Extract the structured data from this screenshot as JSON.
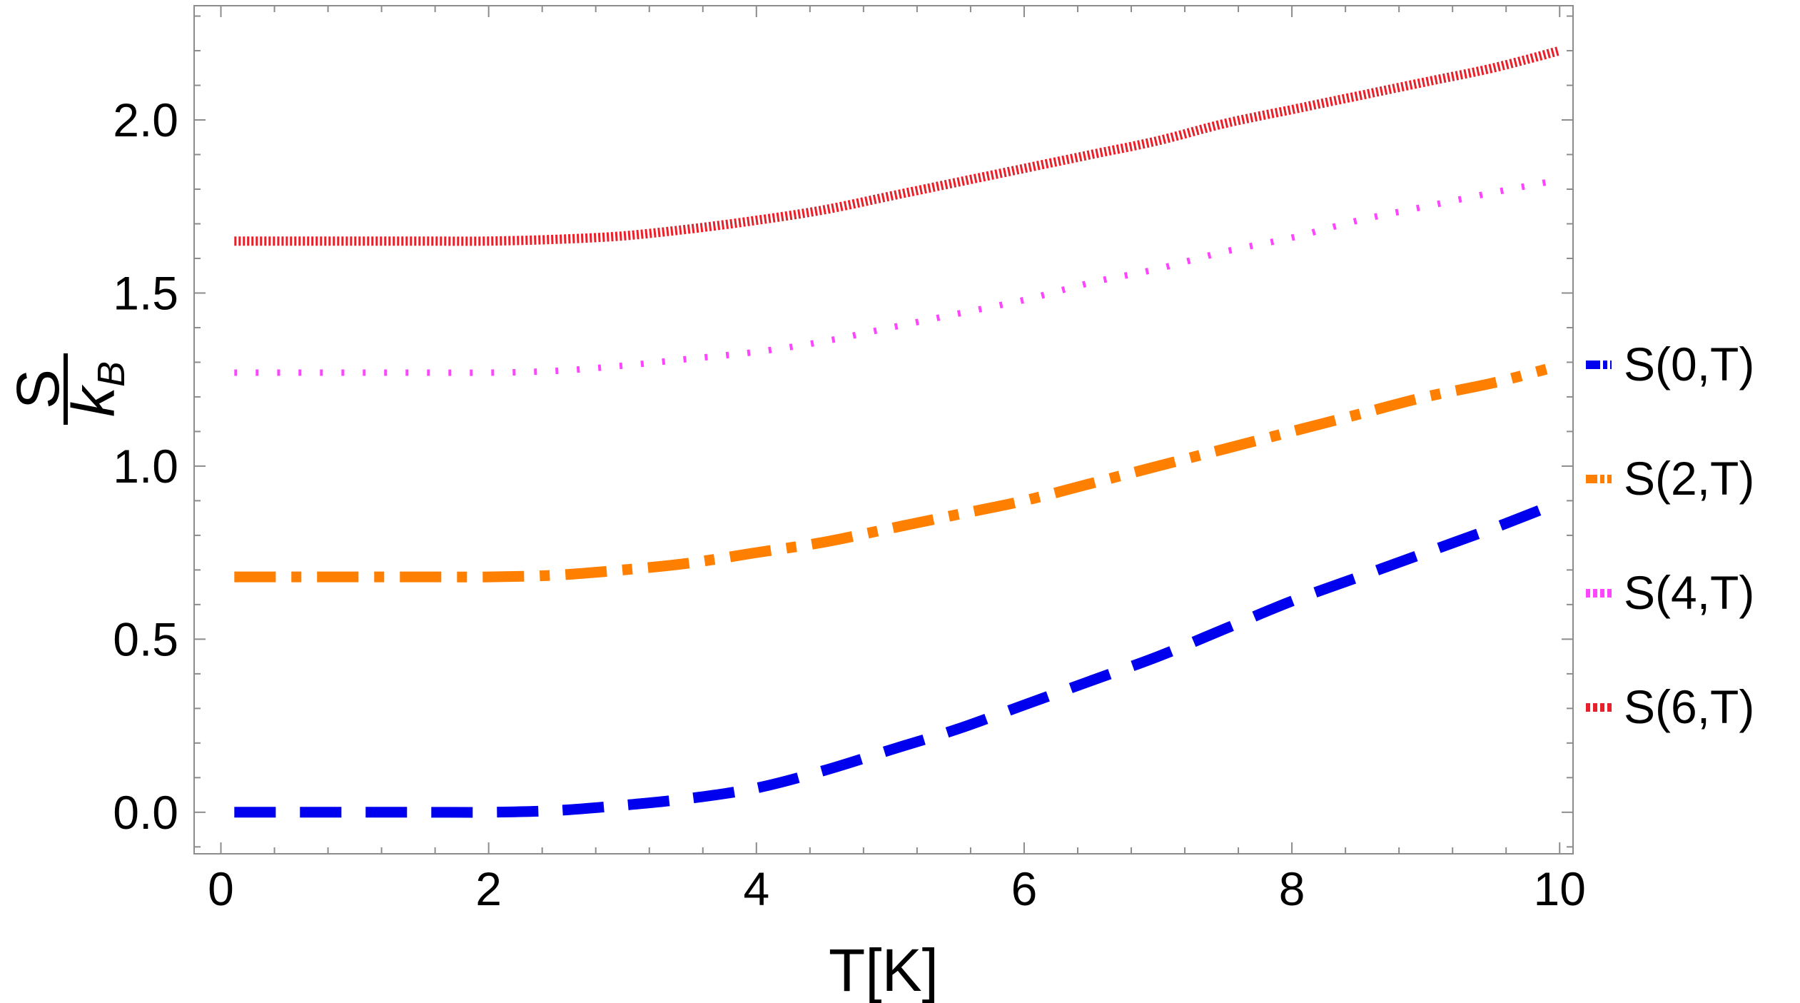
{
  "chart_data": {
    "type": "line",
    "xlabel": "T[K]",
    "ylabel_numerator": "S",
    "ylabel_denominator_main": "k",
    "ylabel_denominator_sub": "B",
    "xlim": [
      -0.2,
      10.1
    ],
    "ylim": [
      -0.12,
      2.33
    ],
    "x_ticks": [
      0,
      2,
      4,
      6,
      8,
      10
    ],
    "x_tick_labels": [
      "0",
      "2",
      "4",
      "6",
      "8",
      "10"
    ],
    "y_ticks": [
      0.0,
      0.5,
      1.0,
      1.5,
      2.0
    ],
    "y_tick_labels": [
      "0.0",
      "0.5",
      "1.0",
      "1.5",
      "2.0"
    ],
    "grid": false,
    "legend_position": "right",
    "series": [
      {
        "name": "S(0,T)",
        "color": "#0000ee",
        "style": "dashed",
        "x": [
          0.1,
          0.5,
          1.0,
          1.5,
          2.0,
          2.5,
          3.0,
          3.5,
          4.0,
          4.5,
          5.0,
          5.5,
          6.0,
          6.5,
          7.0,
          7.5,
          8.0,
          8.5,
          9.0,
          9.5,
          9.9
        ],
        "y": [
          0.0,
          0.0,
          0.0,
          0.0,
          0.0,
          0.005,
          0.02,
          0.04,
          0.07,
          0.12,
          0.18,
          0.24,
          0.31,
          0.38,
          0.45,
          0.53,
          0.61,
          0.68,
          0.75,
          0.82,
          0.88
        ]
      },
      {
        "name": "S(2,T)",
        "color": "#ff7f00",
        "style": "dash-dot",
        "x": [
          0.1,
          0.5,
          1.0,
          1.5,
          2.0,
          2.5,
          3.0,
          3.5,
          4.0,
          4.5,
          5.0,
          5.5,
          6.0,
          6.5,
          7.0,
          7.5,
          8.0,
          8.5,
          9.0,
          9.5,
          9.9
        ],
        "y": [
          0.68,
          0.68,
          0.68,
          0.68,
          0.68,
          0.685,
          0.7,
          0.72,
          0.75,
          0.78,
          0.82,
          0.86,
          0.9,
          0.95,
          1.0,
          1.05,
          1.1,
          1.15,
          1.2,
          1.24,
          1.28
        ]
      },
      {
        "name": "S(4,T)",
        "color": "#ff44ff",
        "style": "dotted",
        "x": [
          0.1,
          0.5,
          1.0,
          1.5,
          2.0,
          2.5,
          3.0,
          3.5,
          4.0,
          4.5,
          5.0,
          5.5,
          6.0,
          6.5,
          7.0,
          7.5,
          8.0,
          8.5,
          9.0,
          9.5,
          9.9
        ],
        "y": [
          1.27,
          1.27,
          1.27,
          1.27,
          1.27,
          1.275,
          1.29,
          1.31,
          1.33,
          1.36,
          1.4,
          1.44,
          1.48,
          1.53,
          1.57,
          1.62,
          1.66,
          1.71,
          1.75,
          1.79,
          1.82
        ]
      },
      {
        "name": "S(6,T)",
        "color": "#e8202a",
        "style": "dense-dotted",
        "x": [
          0.1,
          0.5,
          1.0,
          1.5,
          2.0,
          2.5,
          3.0,
          3.5,
          4.0,
          4.5,
          5.0,
          5.5,
          6.0,
          6.5,
          7.0,
          7.5,
          8.0,
          8.5,
          9.0,
          9.5,
          10.0
        ],
        "y": [
          1.65,
          1.65,
          1.65,
          1.65,
          1.65,
          1.655,
          1.665,
          1.685,
          1.71,
          1.74,
          1.78,
          1.82,
          1.86,
          1.9,
          1.94,
          1.99,
          2.03,
          2.07,
          2.11,
          2.15,
          2.2
        ]
      }
    ]
  }
}
